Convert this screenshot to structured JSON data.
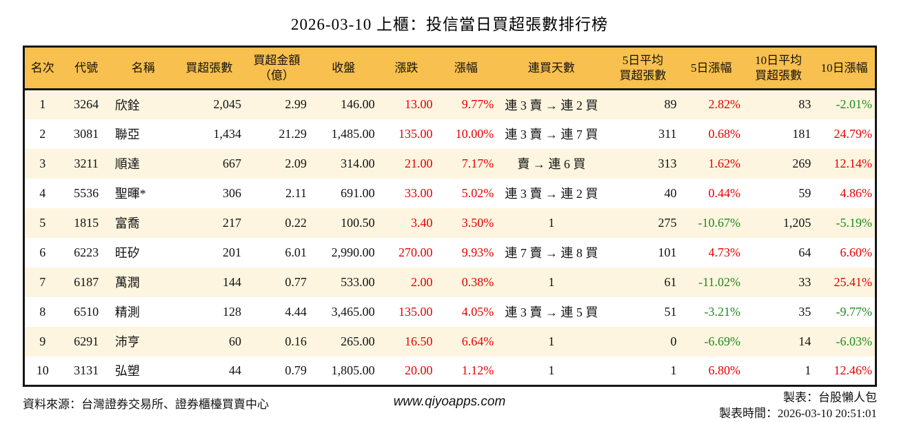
{
  "title": "2026-03-10 上櫃：投信當日買超張數排行榜",
  "colors": {
    "header_bg": "#f8c04e",
    "row_alt_bg": "#fdf5e0",
    "border": "#141414",
    "up_red": "#e60000",
    "down_green": "#1d8a1d"
  },
  "chart_data": {
    "type": "table",
    "title": "2026-03-10 上櫃：投信當日買超張數排行榜",
    "columns": [
      {
        "key": "rank",
        "label": "名次",
        "align": "center",
        "width": 4.3,
        "colored": false
      },
      {
        "key": "code",
        "label": "代號",
        "align": "center",
        "width": 6.1,
        "colored": false
      },
      {
        "key": "name",
        "label": "名稱",
        "align": "left",
        "width": 7.3,
        "colored": false
      },
      {
        "key": "net_buy",
        "label": "買超張數",
        "align": "right",
        "width": 8.2,
        "colored": false
      },
      {
        "key": "amount",
        "label": "買超金額\n（億）",
        "align": "right",
        "width": 7.7,
        "colored": false
      },
      {
        "key": "close",
        "label": "收盤",
        "align": "right",
        "width": 8.0,
        "colored": false
      },
      {
        "key": "change",
        "label": "漲跌",
        "align": "right",
        "width": 6.8,
        "colored": true
      },
      {
        "key": "change_pct",
        "label": "漲幅",
        "align": "right",
        "width": 7.2,
        "colored": true
      },
      {
        "key": "streak",
        "label": "連買天數",
        "align": "center",
        "width": 12.9,
        "colored": false
      },
      {
        "key": "avg5",
        "label": "5日平均\n買超張數",
        "align": "right",
        "width": 8.6,
        "colored": false
      },
      {
        "key": "pct5",
        "label": "5日漲幅",
        "align": "right",
        "width": 7.5,
        "colored": true
      },
      {
        "key": "avg10",
        "label": "10日平均\n買超張數",
        "align": "right",
        "width": 8.3,
        "colored": false
      },
      {
        "key": "pct10",
        "label": "10日漲幅",
        "align": "right",
        "width": 7.3,
        "colored": true
      }
    ],
    "rows": [
      {
        "rank": "1",
        "code": "3264",
        "name": "欣銓",
        "net_buy": "2,045",
        "amount": "2.99",
        "close": "146.00",
        "change": "13.00",
        "change_pct": "9.77%",
        "streak": "連 3 賣 → 連 2 買",
        "avg5": "89",
        "pct5": "2.82%",
        "avg10": "83",
        "pct10": "-2.01%"
      },
      {
        "rank": "2",
        "code": "3081",
        "name": "聯亞",
        "net_buy": "1,434",
        "amount": "21.29",
        "close": "1,485.00",
        "change": "135.00",
        "change_pct": "10.00%",
        "streak": "連 3 賣 → 連 7 買",
        "avg5": "311",
        "pct5": "0.68%",
        "avg10": "181",
        "pct10": "24.79%"
      },
      {
        "rank": "3",
        "code": "3211",
        "name": "順達",
        "net_buy": "667",
        "amount": "2.09",
        "close": "314.00",
        "change": "21.00",
        "change_pct": "7.17%",
        "streak": "賣 → 連 6 買",
        "avg5": "313",
        "pct5": "1.62%",
        "avg10": "269",
        "pct10": "12.14%"
      },
      {
        "rank": "4",
        "code": "5536",
        "name": "聖暉*",
        "net_buy": "306",
        "amount": "2.11",
        "close": "691.00",
        "change": "33.00",
        "change_pct": "5.02%",
        "streak": "連 3 賣 → 連 2 買",
        "avg5": "40",
        "pct5": "0.44%",
        "avg10": "59",
        "pct10": "4.86%"
      },
      {
        "rank": "5",
        "code": "1815",
        "name": "富喬",
        "net_buy": "217",
        "amount": "0.22",
        "close": "100.50",
        "change": "3.40",
        "change_pct": "3.50%",
        "streak": "1",
        "avg5": "275",
        "pct5": "-10.67%",
        "avg10": "1,205",
        "pct10": "-5.19%"
      },
      {
        "rank": "6",
        "code": "6223",
        "name": "旺矽",
        "net_buy": "201",
        "amount": "6.01",
        "close": "2,990.00",
        "change": "270.00",
        "change_pct": "9.93%",
        "streak": "連 7 賣 → 連 8 買",
        "avg5": "101",
        "pct5": "4.73%",
        "avg10": "64",
        "pct10": "6.60%"
      },
      {
        "rank": "7",
        "code": "6187",
        "name": "萬潤",
        "net_buy": "144",
        "amount": "0.77",
        "close": "533.00",
        "change": "2.00",
        "change_pct": "0.38%",
        "streak": "1",
        "avg5": "61",
        "pct5": "-11.02%",
        "avg10": "33",
        "pct10": "25.41%"
      },
      {
        "rank": "8",
        "code": "6510",
        "name": "精測",
        "net_buy": "128",
        "amount": "4.44",
        "close": "3,465.00",
        "change": "135.00",
        "change_pct": "4.05%",
        "streak": "連 3 賣 → 連 5 買",
        "avg5": "51",
        "pct5": "-3.21%",
        "avg10": "35",
        "pct10": "-9.77%"
      },
      {
        "rank": "9",
        "code": "6291",
        "name": "沛亨",
        "net_buy": "60",
        "amount": "0.16",
        "close": "265.00",
        "change": "16.50",
        "change_pct": "6.64%",
        "streak": "1",
        "avg5": "0",
        "pct5": "-6.69%",
        "avg10": "14",
        "pct10": "-6.03%"
      },
      {
        "rank": "10",
        "code": "3131",
        "name": "弘塑",
        "net_buy": "44",
        "amount": "0.79",
        "close": "1,805.00",
        "change": "20.00",
        "change_pct": "1.12%",
        "streak": "1",
        "avg5": "1",
        "pct5": "6.80%",
        "avg10": "1",
        "pct10": "12.46%"
      }
    ]
  },
  "footer": {
    "source": "資料來源：台灣證券交易所、證券櫃檯買賣中心",
    "website": "www.qiyoapps.com",
    "maker": "製表：台股懶人包",
    "made_time": "製表時間：2026-03-10 20:51:01"
  }
}
